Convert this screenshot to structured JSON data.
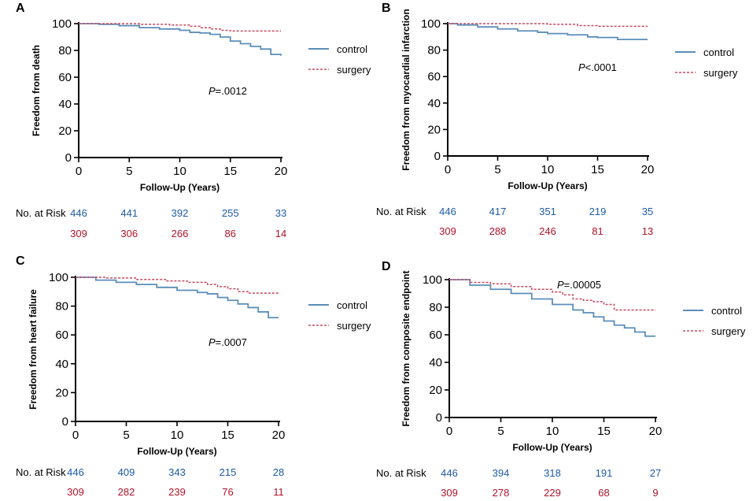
{
  "colors": {
    "control": "#5b8db8",
    "surgery": "#c9485e",
    "risk_control": "#1e5aa8",
    "risk_surgery": "#b1122b"
  },
  "common": {
    "xlabel": "Follow-Up (Years)",
    "legend": [
      "control",
      "surgery"
    ],
    "risk_label": "No. at Risk",
    "xticks": [
      "0",
      "5",
      "10",
      "15",
      "20"
    ],
    "yticks": [
      "0",
      "20",
      "40",
      "60",
      "80",
      "100"
    ]
  },
  "chart_data": [
    {
      "type": "line",
      "panel": "A",
      "title": "",
      "ylabel": "Freedom from death",
      "pvalue_prefix": "P",
      "pvalue_rest": "=.0012",
      "xlim": [
        0,
        20
      ],
      "ylim": [
        0,
        100
      ],
      "series": [
        {
          "name": "control",
          "x": [
            0,
            2,
            4,
            6,
            8,
            10,
            11,
            12,
            13,
            14,
            15,
            16,
            17,
            18,
            19,
            20
          ],
          "y": [
            100,
            99.5,
            98.5,
            97,
            96,
            95,
            93.5,
            93,
            92,
            90,
            87,
            85,
            83,
            81,
            77,
            76
          ]
        },
        {
          "name": "surgery",
          "x": [
            0,
            3,
            6,
            9,
            11,
            12,
            13,
            14,
            15,
            17,
            20
          ],
          "y": [
            100,
            100,
            99.5,
            99,
            98,
            97,
            96,
            95,
            94.5,
            94.5,
            94.5
          ]
        }
      ],
      "risk": {
        "control": [
          "446",
          "441",
          "392",
          "255",
          "33"
        ],
        "surgery": [
          "309",
          "306",
          "266",
          "86",
          "14"
        ]
      }
    },
    {
      "type": "line",
      "panel": "B",
      "title": "",
      "ylabel": "Freedom from myocardial infarction",
      "pvalue_prefix": "P",
      "pvalue_rest": "<.0001",
      "xlim": [
        0,
        20
      ],
      "ylim": [
        0,
        100
      ],
      "series": [
        {
          "name": "control",
          "x": [
            0,
            1,
            3,
            5,
            7,
            9,
            10,
            12,
            14,
            15,
            17,
            20
          ],
          "y": [
            100,
            99,
            97.5,
            96,
            94.5,
            93.5,
            92.5,
            91.5,
            90,
            89.5,
            88,
            88
          ]
        },
        {
          "name": "surgery",
          "x": [
            0,
            5,
            10,
            13,
            15,
            20
          ],
          "y": [
            100,
            100,
            99.5,
            98.5,
            98,
            98
          ]
        }
      ],
      "risk": {
        "control": [
          "446",
          "417",
          "351",
          "219",
          "35"
        ],
        "surgery": [
          "309",
          "288",
          "246",
          "81",
          "13"
        ]
      }
    },
    {
      "type": "line",
      "panel": "C",
      "title": "",
      "ylabel": "Freedom from heart failure",
      "pvalue_prefix": "P",
      "pvalue_rest": "=.0007",
      "xlim": [
        0,
        20
      ],
      "ylim": [
        0,
        100
      ],
      "series": [
        {
          "name": "control",
          "x": [
            0,
            2,
            4,
            6,
            8,
            10,
            12,
            13,
            14,
            15,
            16,
            17,
            18,
            19,
            20
          ],
          "y": [
            100,
            98,
            96.5,
            95,
            93,
            91,
            89.5,
            88.5,
            86,
            84,
            81.5,
            79,
            76,
            72,
            72
          ]
        },
        {
          "name": "surgery",
          "x": [
            0,
            3,
            6,
            9,
            11,
            13,
            14,
            15,
            16,
            17,
            20
          ],
          "y": [
            100,
            99.5,
            98.5,
            97.5,
            96.5,
            95,
            93.5,
            92,
            90,
            89,
            89
          ]
        }
      ],
      "risk": {
        "control": [
          "446",
          "409",
          "343",
          "215",
          "28"
        ],
        "surgery": [
          "309",
          "282",
          "239",
          "76",
          "11"
        ]
      }
    },
    {
      "type": "line",
      "panel": "D",
      "title": "",
      "ylabel": "Freedom from composite endpoint",
      "pvalue_prefix": "P",
      "pvalue_rest": "=.00005",
      "xlim": [
        0,
        20
      ],
      "ylim": [
        0,
        100
      ],
      "series": [
        {
          "name": "control",
          "x": [
            0,
            2,
            4,
            6,
            8,
            10,
            12,
            13,
            14,
            15,
            16,
            17,
            18,
            19,
            20
          ],
          "y": [
            100,
            96,
            93,
            90,
            86,
            82,
            78,
            76,
            73,
            70,
            67,
            65,
            62,
            59,
            59
          ]
        },
        {
          "name": "surgery",
          "x": [
            0,
            2,
            4,
            6,
            8,
            10,
            11,
            12,
            13,
            14,
            15,
            16,
            17,
            20
          ],
          "y": [
            100,
            98,
            97,
            95,
            93,
            91,
            89,
            86,
            85,
            84,
            82,
            78,
            78,
            78
          ]
        }
      ],
      "risk": {
        "control": [
          "446",
          "394",
          "318",
          "191",
          "27"
        ],
        "surgery": [
          "309",
          "278",
          "229",
          "68",
          "9"
        ]
      }
    }
  ]
}
